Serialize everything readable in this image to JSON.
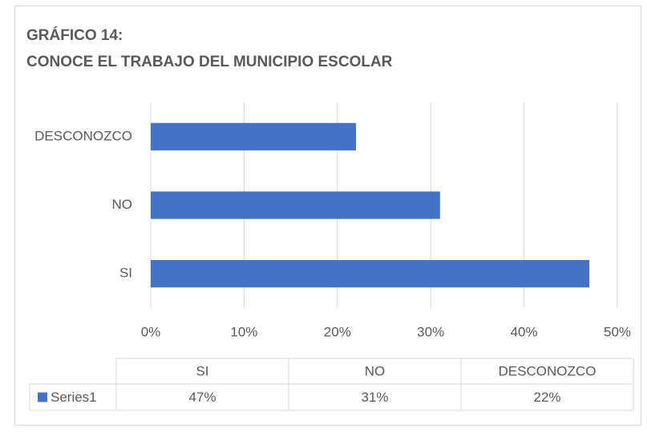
{
  "chart_data": {
    "type": "barh",
    "title": "GRÁFICO 14:",
    "subtitle": "CONOCE EL TRABAJO DEL MUNICIPIO ESCOLAR",
    "categories": [
      "SI",
      "NO",
      "DESCONOZCO"
    ],
    "series": [
      {
        "name": "Series1",
        "color": "#4472c4",
        "values": [
          47,
          31,
          22
        ],
        "value_labels": [
          "47%",
          "31%",
          "22%"
        ]
      }
    ],
    "xlim": [
      0,
      50
    ],
    "xticks": [
      {
        "value": 0,
        "label": "0%"
      },
      {
        "value": 10,
        "label": "10%"
      },
      {
        "value": 20,
        "label": "20%"
      },
      {
        "value": 30,
        "label": "30%"
      },
      {
        "value": 40,
        "label": "40%"
      },
      {
        "value": 50,
        "label": "50%"
      }
    ],
    "grid": true,
    "data_table": true
  }
}
